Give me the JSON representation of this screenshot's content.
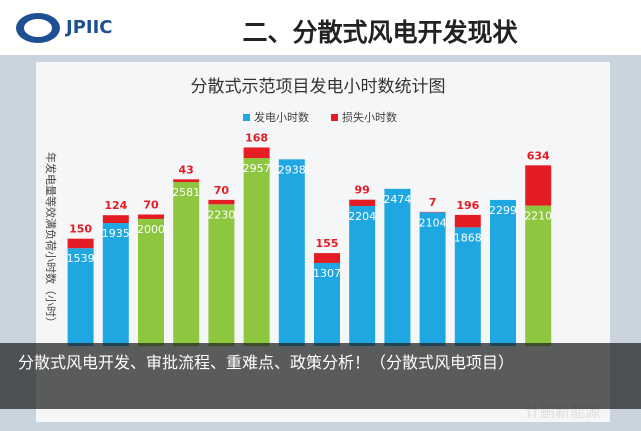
{
  "header": {
    "logo": "JPIIC",
    "title": "二、分散式风电开发现状"
  },
  "chart_data": {
    "type": "bar",
    "stacked": true,
    "title": "分散式示范项目发电小时数统计图",
    "ylabel": "年发电量等效满负荷小时数（小时）",
    "categories": [
      null,
      null,
      null,
      null,
      null,
      null,
      null,
      null,
      null,
      null,
      null,
      null,
      null,
      null
    ],
    "series": [
      {
        "name": "发电小时数",
        "color": "#1ea7e1",
        "colors": [
          "#1ea7e1",
          "#1ea7e1",
          "#8dc63f",
          "#8dc63f",
          "#8dc63f",
          "#8dc63f",
          "#1ea7e1",
          "#1ea7e1",
          "#1ea7e1",
          "#1ea7e1",
          "#1ea7e1",
          "#1ea7e1",
          "#1ea7e1",
          "#8dc63f"
        ],
        "values": [
          1539,
          1935,
          2000,
          2581,
          2230,
          2957,
          2938,
          1307,
          2204,
          2474,
          2104,
          1868,
          2299,
          2210
        ]
      },
      {
        "name": "损失小时数",
        "color": "#e41d25",
        "values": [
          150,
          124,
          70,
          43,
          70,
          168,
          null,
          155,
          99,
          null,
          7,
          196,
          null,
          634
        ]
      }
    ],
    "ylim": [
      0,
      3400
    ],
    "legend": "top"
  },
  "caption": "分散式风电开发、审批流程、重难点、政策分析！（分散式风电项目）",
  "watermark": "计鹏新能源"
}
